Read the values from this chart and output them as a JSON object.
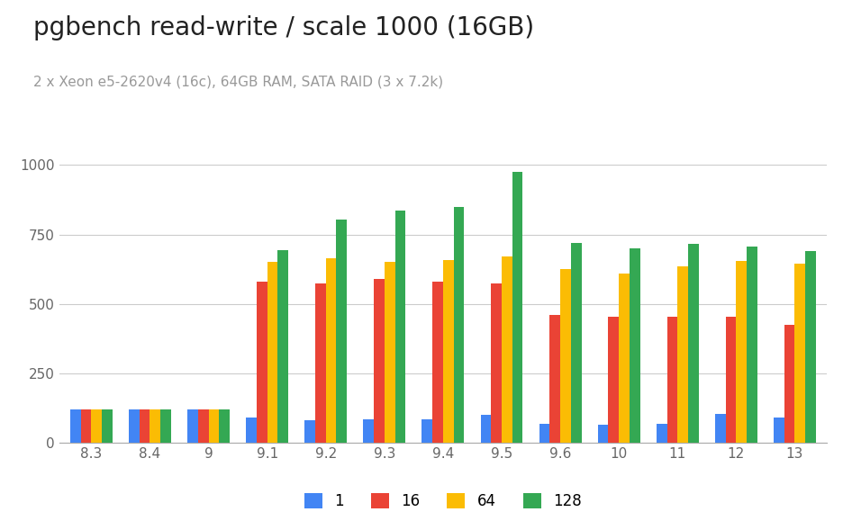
{
  "title": "pgbench read-write / scale 1000 (16GB)",
  "subtitle": "2 x Xeon e5-2620v4 (16c), 64GB RAM, SATA RAID (3 x 7.2k)",
  "categories": [
    "8.3",
    "8.4",
    "9",
    "9.1",
    "9.2",
    "9.3",
    "9.4",
    "9.5",
    "9.6",
    "10",
    "11",
    "12",
    "13"
  ],
  "series": {
    "1": [
      120,
      120,
      120,
      90,
      80,
      85,
      85,
      100,
      70,
      65,
      70,
      105,
      90
    ],
    "16": [
      120,
      120,
      120,
      580,
      575,
      590,
      580,
      575,
      460,
      455,
      455,
      455,
      425
    ],
    "64": [
      120,
      120,
      120,
      650,
      665,
      650,
      658,
      670,
      625,
      610,
      635,
      655,
      645
    ],
    "128": [
      120,
      120,
      120,
      695,
      805,
      835,
      850,
      975,
      720,
      700,
      715,
      705,
      690
    ]
  },
  "colors": {
    "1": "#4285F4",
    "16": "#EA4335",
    "64": "#FBBC04",
    "128": "#34A853"
  },
  "ylim": [
    0,
    1050
  ],
  "yticks": [
    0,
    250,
    500,
    750,
    1000
  ],
  "background_color": "#ffffff",
  "title_fontsize": 20,
  "subtitle_fontsize": 11,
  "legend_labels": [
    "1",
    "16",
    "64",
    "128"
  ],
  "bar_width": 0.18,
  "grid_color": "#cccccc"
}
